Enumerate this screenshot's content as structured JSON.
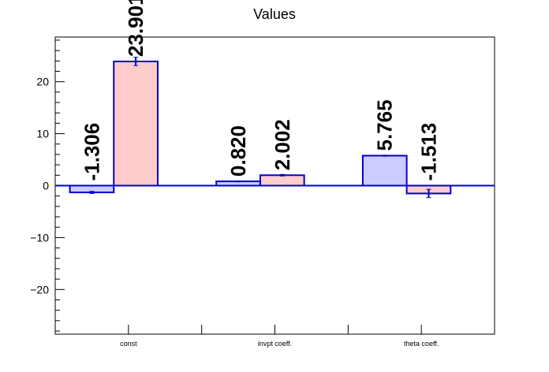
{
  "chart_data": {
    "type": "bar",
    "title": "Values",
    "xlabel": "",
    "ylabel": "",
    "categories": [
      "const",
      "invpt coeff.",
      "theta coeff."
    ],
    "series": [
      {
        "values": [
          -1.306,
          0.82,
          5.765
        ],
        "errors": [
          0.2,
          0.1,
          0.1
        ],
        "fill": "#ccccff",
        "stroke": "#0000cc"
      },
      {
        "values": [
          23.901,
          2.002,
          -1.513
        ],
        "errors": [
          0.8,
          0.15,
          0.8
        ],
        "fill": "#ffcccc",
        "stroke": "#0000cc"
      }
    ],
    "data_labels": [
      [
        "-1.306",
        "0.820",
        "5.765"
      ],
      [
        "23.901",
        "2.002",
        "-1.513"
      ]
    ],
    "ylim": [
      -28.6,
      28.6
    ],
    "yticks": [
      -20,
      -10,
      0,
      10,
      20
    ],
    "ytick_labels": [
      "−20",
      "−10",
      "0",
      "10",
      "20"
    ],
    "grid": false,
    "legend": "none"
  }
}
